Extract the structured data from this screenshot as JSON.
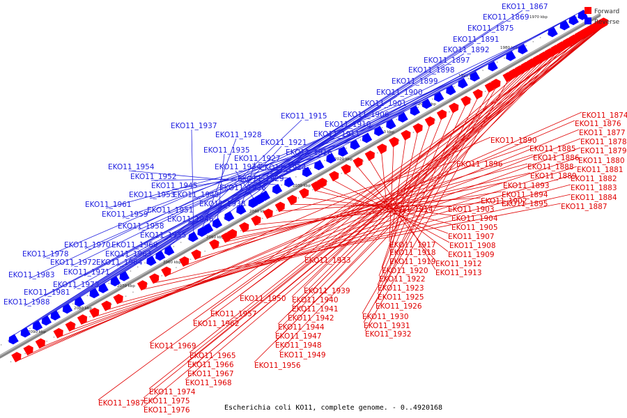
{
  "caption": "Escherichia coli KO11, complete genome. - 0..4920168",
  "legend": [
    {
      "label": "Forward",
      "color": "#ff0000"
    },
    {
      "label": "Reverse",
      "color": "#0000ff"
    }
  ],
  "colors": {
    "forward": "#ff0000",
    "reverse": "#0000ff",
    "backbone": "#777777"
  },
  "scale_ticks": [
    "1970 kbp",
    "1980 kbp",
    "1990 kbp",
    "2000 kbp",
    "2010 kbp",
    "2020 kbp",
    "2030 kbp",
    "2040 kbp",
    "2050 kbp",
    "2060 kbp",
    "2070 kbp",
    "2080 kbp",
    "2090 kbp"
  ],
  "reverse_labels": [
    "EKO11_1867",
    "EKO11_1869",
    "EKO11_1875",
    "EKO11_1891",
    "EKO11_1892",
    "EKO11_1897",
    "EKO11_1898",
    "EKO11_1899",
    "EKO11_1900",
    "EKO11_1901",
    "EKO11_1906",
    "EKO11_1910",
    "EKO11_1911",
    "EKO11_1915",
    "EKO11_1937",
    "EKO11_1928",
    "EKO11_1921",
    "EKO11_1935",
    "EKO11_1916",
    "EKO11_1927",
    "EKO11_1934",
    "EKO11_1924",
    "EKO11_1929",
    "EKO11_1954",
    "EKO11_1952",
    "EKO11_1945",
    "EKO11_1936",
    "EKO11_1953",
    "EKO11_1943",
    "EKO11_1961",
    "EKO11_1938",
    "EKO11_1951",
    "EKO11_1959",
    "EKO11_1946",
    "EKO11_1958",
    "EKO11_1955",
    "EKO11_1970",
    "EKO11_1960",
    "EKO11_1963",
    "EKO11_1978",
    "EKO11_1972",
    "EKO11_1964",
    "EKO11_1971",
    "EKO11_1983",
    "EKO11_1973",
    "EKO11_1981",
    "EKO11_1988"
  ],
  "forward_labels": [
    "EKO11_1874",
    "EKO11_1876",
    "EKO11_1877",
    "EKO11_1878",
    "EKO11_1879",
    "EKO11_1880",
    "EKO11_1881",
    "EKO11_1882",
    "EKO11_1883",
    "EKO11_1884",
    "EKO11_1887",
    "EKO11_1890",
    "EKO11_1885",
    "EKO11_1886",
    "EKO11_1888",
    "EKO11_1889",
    "EKO11_1893",
    "EKO11_1894",
    "EKO11_1895",
    "EKO11_1896",
    "EKO11_1902",
    "EKO11_1903",
    "EKO11_1904",
    "EKO11_1905",
    "EKO11_1907",
    "EKO11_1908",
    "EKO11_1909",
    "EKO11_1912",
    "EKO11_1913",
    "EKO11_1914",
    "EKO11_1917",
    "EKO11_1918",
    "EKO11_1919",
    "EKO11_1920",
    "EKO11_1922",
    "EKO11_1923",
    "EKO11_1925",
    "EKO11_1926",
    "EKO11_1930",
    "EKO11_1931",
    "EKO11_1932",
    "EKO11_1933",
    "EKO11_1939",
    "EKO11_1940",
    "EKO11_1941",
    "EKO11_1942",
    "EKO11_1944",
    "EKO11_1947",
    "EKO11_1948",
    "EKO11_1949",
    "EKO11_1950",
    "EKO11_1956",
    "EKO11_1957",
    "EKO11_1962",
    "EKO11_1969",
    "EKO11_1965",
    "EKO11_1966",
    "EKO11_1967",
    "EKO11_1968",
    "EKO11_1974",
    "EKO11_1975",
    "EKO11_1976",
    "EKO11_1987"
  ]
}
